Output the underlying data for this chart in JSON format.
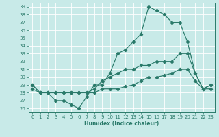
{
  "xlabel": "Humidex (Indice chaleur)",
  "xlim": [
    -0.5,
    23.5
  ],
  "ylim": [
    25.5,
    39.5
  ],
  "yticks": [
    26,
    27,
    28,
    29,
    30,
    31,
    32,
    33,
    34,
    35,
    36,
    37,
    38,
    39
  ],
  "xticks": [
    0,
    1,
    2,
    3,
    4,
    5,
    6,
    7,
    8,
    9,
    10,
    11,
    12,
    13,
    14,
    15,
    16,
    17,
    18,
    19,
    20,
    21,
    22,
    23
  ],
  "line_color": "#2a7a6a",
  "bg_color": "#c8eae8",
  "grid_color": "#ffffff",
  "lines": [
    {
      "x": [
        0,
        1,
        2,
        3,
        4,
        5,
        6,
        7,
        8,
        9,
        10,
        11,
        12,
        13,
        14,
        15,
        16,
        17,
        18,
        19,
        20,
        21,
        22,
        23
      ],
      "y": [
        29,
        28,
        28,
        27,
        27,
        26.5,
        26,
        27.5,
        29,
        29,
        30.5,
        33,
        33.5,
        34.5,
        35.5,
        39,
        38.5,
        38,
        37,
        37,
        34.5,
        30.5,
        28.5,
        29
      ]
    },
    {
      "x": [
        0,
        1,
        2,
        3,
        4,
        5,
        6,
        7,
        8,
        9,
        10,
        11,
        12,
        13,
        14,
        15,
        16,
        17,
        18,
        19,
        20,
        21,
        22,
        23
      ],
      "y": [
        29,
        28,
        28,
        28,
        28,
        28,
        28,
        28,
        28.5,
        29.5,
        30,
        30.5,
        31,
        31,
        31.5,
        31.5,
        32,
        32,
        32,
        33,
        33,
        30.5,
        28.5,
        29
      ]
    },
    {
      "x": [
        0,
        1,
        2,
        3,
        4,
        5,
        6,
        7,
        8,
        9,
        10,
        11,
        12,
        13,
        14,
        15,
        16,
        17,
        18,
        19,
        20,
        21,
        22,
        23
      ],
      "y": [
        28.5,
        28,
        28,
        28,
        28,
        28,
        28,
        28,
        28,
        28.5,
        28.5,
        28.5,
        28.8,
        29,
        29.5,
        30,
        30,
        30.2,
        30.5,
        31,
        31,
        29.5,
        28.5,
        28.5
      ]
    }
  ]
}
